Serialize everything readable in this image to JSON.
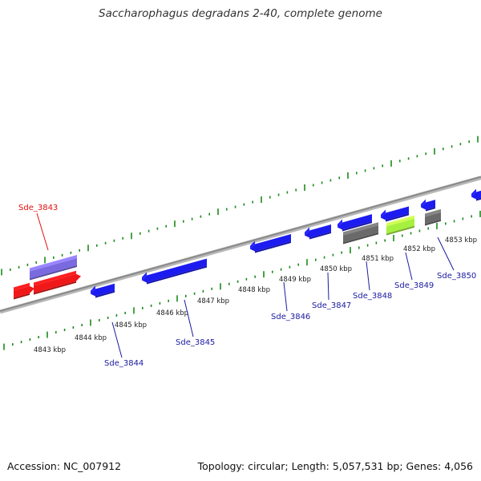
{
  "title": "Saccharophagus degradans 2-40, complete genome",
  "footer": {
    "accession": "Accession: NC_007912",
    "summary": "Topology: circular; Length: 5,057,531 bp; Genes: 4,056"
  },
  "colors": {
    "backbone": "#8a8a8a",
    "tick": "#1a8a1a",
    "forward_gene": "#1c1cf0",
    "reverse_gene": "#1c1cf0",
    "red_gene": "#f01818",
    "purple_gene": "#7a6ae0",
    "gray_gene": "#6a6a6a",
    "green_gene": "#a6f040",
    "label_blue": "#1a1aa0",
    "label_red": "#e01010"
  },
  "scale_labels": [
    "4843 kbp",
    "4844 kbp",
    "4845 kbp",
    "4846 kbp",
    "4847 kbp",
    "4848 kbp",
    "4849 kbp",
    "4850 kbp",
    "4851 kbp",
    "4852 kbp",
    "4853 kbp"
  ],
  "genes": [
    {
      "label": "Sde_3843",
      "color": "red"
    },
    {
      "label": "Sde_3844",
      "color": "blue"
    },
    {
      "label": "Sde_3845",
      "color": "blue"
    },
    {
      "label": "Sde_3846",
      "color": "blue"
    },
    {
      "label": "Sde_3847",
      "color": "blue"
    },
    {
      "label": "Sde_3848",
      "color": "blue"
    },
    {
      "label": "Sde_3849",
      "color": "blue"
    },
    {
      "label": "Sde_3850",
      "color": "blue"
    }
  ]
}
